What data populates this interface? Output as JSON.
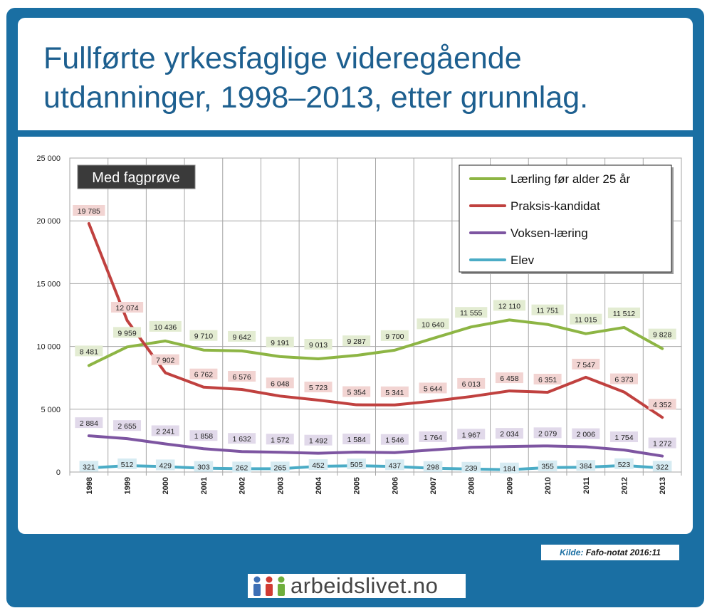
{
  "page": {
    "title": "Fullførte yrkesfaglige videregående utdanninger, 1998–2013, etter grunnlag.",
    "source_label": "Kilde:",
    "source_value": "Fafo-notat 2016:11",
    "logo_text": "arbeidslivet.no",
    "logo_icon": "people-icon"
  },
  "chart_data": {
    "type": "line",
    "annotation": "Med fagprøve",
    "categories": [
      "1998",
      "1999",
      "2000",
      "2001",
      "2002",
      "2003",
      "2004",
      "2005",
      "2006",
      "2007",
      "2008",
      "2009",
      "2010",
      "2011",
      "2012",
      "2013"
    ],
    "ylim": [
      0,
      25000
    ],
    "yticks": [
      0,
      5000,
      10000,
      15000,
      20000,
      25000
    ],
    "ytick_labels": [
      "0",
      "5 000",
      "10 000",
      "15 000",
      "20 000",
      "25 000"
    ],
    "grid": true,
    "legend_position": "top-right",
    "series": [
      {
        "name": "Lærling før alder 25 år",
        "color": "#8db544",
        "label_bg": "#e3ecd2",
        "values": [
          8481,
          9959,
          10436,
          9710,
          9642,
          9191,
          9013,
          9287,
          9700,
          10640,
          11555,
          12110,
          11751,
          11015,
          11512,
          9828
        ],
        "labels": [
          "8 481",
          "9 959",
          "10 436",
          "9 710",
          "9 642",
          "9 191",
          "9 013",
          "9 287",
          "9 700",
          "10 640",
          "11 555",
          "12 110",
          "11 751",
          "11 015",
          "11 512",
          "9 828"
        ]
      },
      {
        "name": "Praksis-kandidat",
        "color": "#c0413f",
        "label_bg": "#f2d4d2",
        "values": [
          19785,
          12074,
          7902,
          6762,
          6576,
          6048,
          5723,
          5354,
          5341,
          5644,
          6013,
          6458,
          6351,
          7547,
          6373,
          4352
        ],
        "labels": [
          "19 785",
          "12 074",
          "7 902",
          "6 762",
          "6 576",
          "6 048",
          "5 723",
          "5 354",
          "5 341",
          "5 644",
          "6 013",
          "6 458",
          "6 351",
          "7 547",
          "6 373",
          "4 352"
        ]
      },
      {
        "name": "Voksen-læring",
        "color": "#7d55a1",
        "label_bg": "#e1d9ea",
        "values": [
          2884,
          2655,
          2241,
          1858,
          1632,
          1572,
          1492,
          1584,
          1546,
          1764,
          1967,
          2034,
          2079,
          2006,
          1754,
          1272
        ],
        "labels": [
          "2 884",
          "2 655",
          "2 241",
          "1 858",
          "1 632",
          "1 572",
          "1 492",
          "1 584",
          "1 546",
          "1 764",
          "1 967",
          "2 034",
          "2 079",
          "2 006",
          "1 754",
          "1 272"
        ]
      },
      {
        "name": "Elev",
        "color": "#4bacc6",
        "label_bg": "#d6ebf2",
        "values": [
          321,
          512,
          429,
          303,
          262,
          265,
          452,
          505,
          437,
          298,
          239,
          184,
          355,
          384,
          523,
          322
        ],
        "labels": [
          "321",
          "512",
          "429",
          "303",
          "262",
          "265",
          "452",
          "505",
          "437",
          "298",
          "239",
          "184",
          "355",
          "384",
          "523",
          "322"
        ]
      }
    ]
  }
}
